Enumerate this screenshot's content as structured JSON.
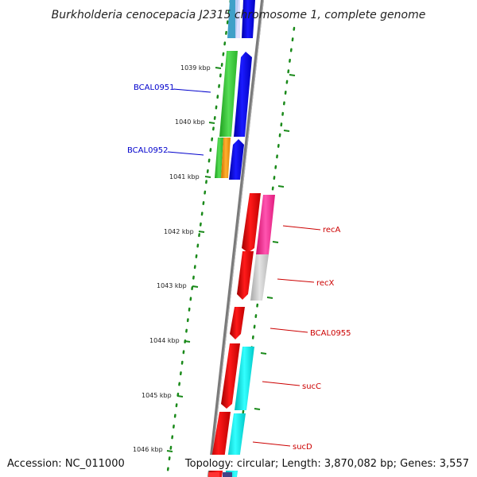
{
  "title": "Burkholderia cenocepacia J2315 chromosome 1, complete genome",
  "footer": {
    "accession": "Accession: NC_011000",
    "summary": "Topology: circular; Length: 3,870,082 bp; Genes: 3,557"
  },
  "ticks": [
    "1039 kbp",
    "1040 kbp",
    "1041 kbp",
    "1042 kbp",
    "1043 kbp",
    "1044 kbp",
    "1045 kbp",
    "1046 kbp"
  ],
  "genes": {
    "bcal0951": "BCAL0951",
    "bcal0952": "BCAL0952",
    "recA": "recA",
    "recX": "recX",
    "bcal0955": "BCAL0955",
    "sucC": "sucC",
    "sucD": "sucD"
  },
  "colors": {
    "backbone": "#808080",
    "tick_dots": "#1a8a1a",
    "blue_label": "#0000cc",
    "red_label": "#cc0000",
    "gene_red": "#ee0000",
    "gene_blue": "#0000ee",
    "gene_green": "#33cc33",
    "gene_orange": "#ff9900",
    "gene_cyan": "#00e5e5",
    "gene_magenta": "#ff2d9a",
    "gene_gray": "#c8c8c8"
  }
}
